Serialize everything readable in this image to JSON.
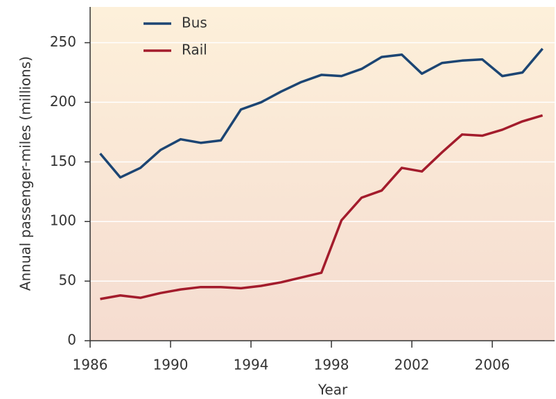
{
  "chart_data": {
    "type": "line",
    "x_label": "Year",
    "y_label": "Annual passenger-miles (millions)",
    "x": [
      1986.5,
      1987.5,
      1988.5,
      1989.5,
      1990.5,
      1991.5,
      1992.5,
      1993.5,
      1994.5,
      1995.5,
      1996.5,
      1997.5,
      1998.5,
      1999.5,
      2000.5,
      2001.5,
      2002.5,
      2003.5,
      2004.5,
      2005.5,
      2006.5,
      2007.5,
      2008.5
    ],
    "series": [
      {
        "name": "Bus",
        "color": "#1c4573",
        "values": [
          157,
          137,
          145,
          160,
          169,
          166,
          168,
          194,
          200,
          209,
          217,
          223,
          222,
          228,
          238,
          240,
          224,
          233,
          235,
          236,
          222,
          225,
          245
        ]
      },
      {
        "name": "Rail",
        "color": "#a31c2c",
        "values": [
          35,
          38,
          36,
          40,
          43,
          45,
          45,
          44,
          46,
          49,
          53,
          57,
          101,
          120,
          126,
          145,
          142,
          158,
          173,
          172,
          177,
          184,
          189
        ]
      }
    ],
    "xlim": [
      1986,
      2009.1
    ],
    "ylim": [
      0,
      280
    ],
    "xticks": [
      1986,
      1990,
      1994,
      1998,
      2002,
      2006
    ],
    "yticks": [
      0,
      50,
      100,
      150,
      200,
      250
    ],
    "grid": true,
    "legend": "top-left"
  }
}
